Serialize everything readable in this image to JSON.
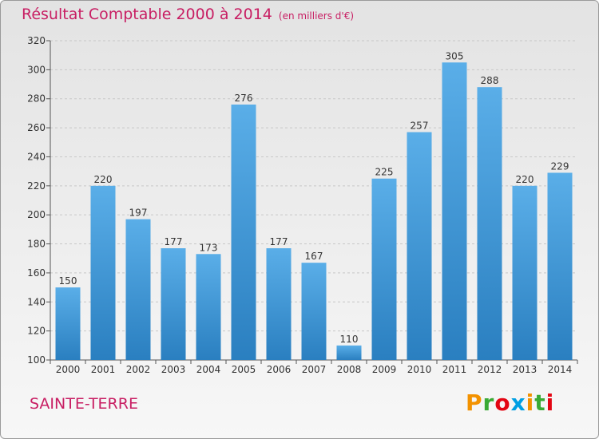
{
  "title": "Résultat Comptable 2000 à 2014",
  "unit_note": "(en milliers d'€)",
  "commune": "SAINTE-TERRE",
  "logo": {
    "text": "Proxiti",
    "colors": [
      "#f39200",
      "#3aaa35",
      "#e30613",
      "#009fe3",
      "#f39200",
      "#3aaa35",
      "#e30613"
    ]
  },
  "colors": {
    "bar_top": "#5aaee8",
    "bar_bottom": "#2a7fc0",
    "title": "#c81e63"
  },
  "chart_data": {
    "type": "bar",
    "title": "Résultat Comptable 2000 à 2014",
    "subtitle": "(en milliers d'€)",
    "xlabel": "",
    "ylabel": "",
    "categories": [
      "2000",
      "2001",
      "2002",
      "2003",
      "2004",
      "2005",
      "2006",
      "2007",
      "2008",
      "2009",
      "2010",
      "2011",
      "2012",
      "2013",
      "2014"
    ],
    "values": [
      150,
      220,
      197,
      177,
      173,
      276,
      177,
      167,
      110,
      225,
      257,
      305,
      288,
      220,
      229
    ],
    "ylim": [
      100,
      320
    ],
    "yticks": [
      100,
      120,
      140,
      160,
      180,
      200,
      220,
      240,
      260,
      280,
      300,
      320
    ],
    "grid": true,
    "legend": "none"
  }
}
